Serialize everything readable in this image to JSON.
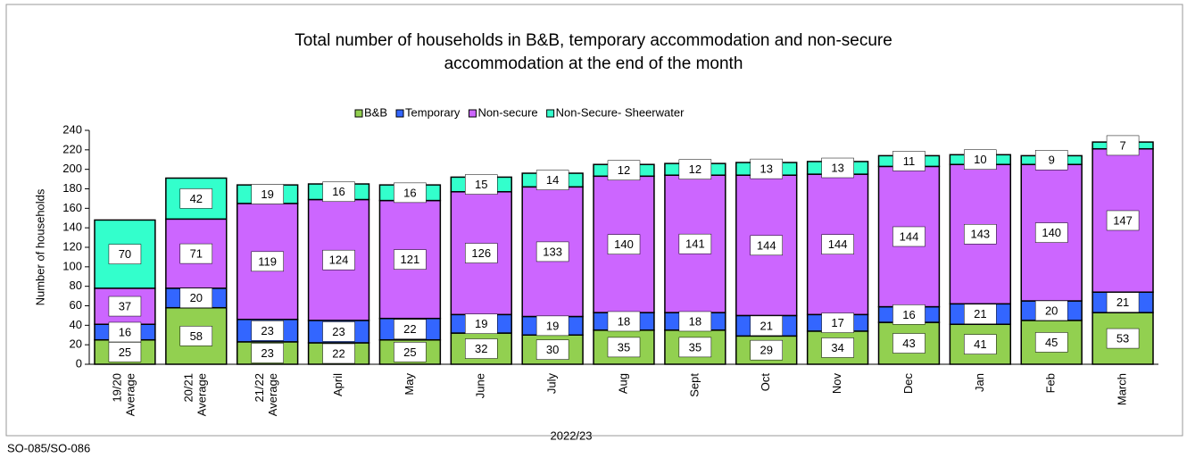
{
  "chart_data": {
    "type": "stacked_bar",
    "title": "Total number of households in B&B, temporary accommodation and non-secure accommodation at the end of the month",
    "y_label": "Number of households",
    "x_label": "2022/23",
    "footer": "SO-085/SO-086",
    "categories": [
      "19/20 Average",
      "20/21 Average",
      "21/22 Average",
      "April",
      "May",
      "June",
      "July",
      "Aug",
      "Sept",
      "Oct",
      "Nov",
      "Dec",
      "Jan",
      "Feb",
      "March"
    ],
    "series": [
      {
        "name": "B&B",
        "color": "#92d050",
        "values": [
          25,
          58,
          23,
          22,
          25,
          32,
          30,
          35,
          35,
          29,
          34,
          43,
          41,
          45,
          53
        ]
      },
      {
        "name": "Temporary",
        "color": "#3366ff",
        "values": [
          16,
          20,
          23,
          23,
          22,
          19,
          19,
          18,
          18,
          21,
          17,
          16,
          21,
          20,
          21
        ]
      },
      {
        "name": "Non-secure",
        "color": "#cc66ff",
        "values": [
          37,
          71,
          119,
          124,
          121,
          126,
          133,
          140,
          141,
          144,
          144,
          144,
          143,
          140,
          147
        ]
      },
      {
        "name": "Non-Secure- Sheerwater",
        "color": "#33ffcc",
        "values": [
          70,
          42,
          19,
          16,
          16,
          15,
          14,
          12,
          12,
          13,
          13,
          11,
          10,
          9,
          7
        ]
      }
    ],
    "ylim": [
      0,
      240
    ],
    "yticks": [
      0,
      20,
      40,
      60,
      80,
      100,
      120,
      140,
      160,
      180,
      200,
      220,
      240
    ],
    "legend": "top"
  }
}
